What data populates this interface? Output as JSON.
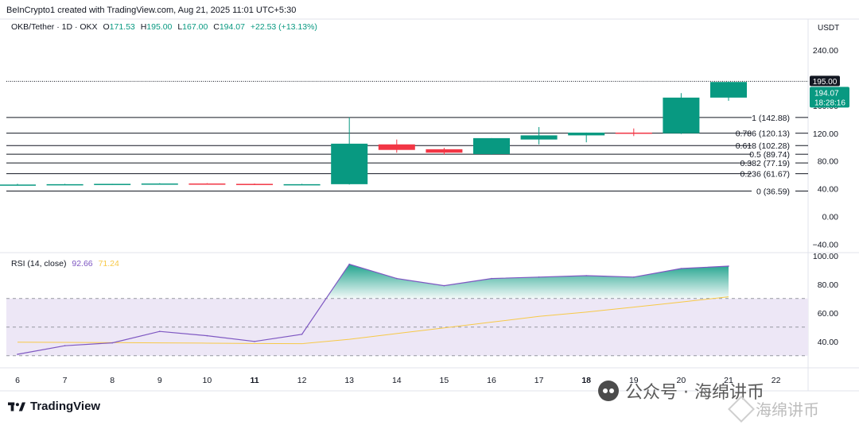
{
  "header": {
    "text": "BeInCrypto1 created with TradingView.com, Aug 21, 2025 11:01 UTC+5:30"
  },
  "legend": {
    "symbol": "OKB/Tether · 1D · OKX",
    "o_label": "O",
    "o_value": "171.53",
    "h_label": "H",
    "h_value": "195.00",
    "l_label": "L",
    "l_value": "167.00",
    "c_label": "C",
    "c_value": "194.07",
    "change": "+22.53 (+13.13%)"
  },
  "rsi_legend": {
    "label": "RSI (14, close)",
    "rsi_value": "92.66",
    "ma_value": "71.24"
  },
  "currency": "USDT",
  "price_badges": {
    "high": "195.00",
    "last": "194.07",
    "countdown": "18:28:16"
  },
  "branding": {
    "logo": "TradingView"
  },
  "watermark": {
    "text1": "公众号 · 海绵讲币",
    "text2": "海绵讲币"
  },
  "colors": {
    "up": "#089981",
    "down": "#f23645",
    "rsi_line": "#7e57c2",
    "rsi_ma": "#f7c948",
    "fib": "#131722",
    "rsi_band": "#ede7f6"
  },
  "chart_data": [
    {
      "type": "candlestick",
      "title": "OKB/Tether · 1D · OKX",
      "x": [
        "6",
        "7",
        "8",
        "9",
        "10",
        "11",
        "12",
        "13",
        "14",
        "15",
        "16",
        "17",
        "18",
        "19",
        "20",
        "21",
        "22"
      ],
      "bold_ticks": [
        "11",
        "18"
      ],
      "candles": [
        {
          "x": "6",
          "o": 46,
          "h": 47,
          "l": 45,
          "c": 46
        },
        {
          "x": "7",
          "o": 46,
          "h": 47,
          "l": 45.5,
          "c": 46.5
        },
        {
          "x": "8",
          "o": 46.5,
          "h": 47,
          "l": 46,
          "c": 47
        },
        {
          "x": "9",
          "o": 47,
          "h": 48,
          "l": 46.5,
          "c": 47.5
        },
        {
          "x": "10",
          "o": 47.5,
          "h": 48,
          "l": 46.5,
          "c": 47
        },
        {
          "x": "11",
          "o": 47,
          "h": 47.5,
          "l": 46,
          "c": 46.5
        },
        {
          "x": "12",
          "o": 46.5,
          "h": 47,
          "l": 46,
          "c": 46.5
        },
        {
          "x": "13",
          "o": 46.5,
          "h": 143,
          "l": 46,
          "c": 105
        },
        {
          "x": "14",
          "o": 104,
          "h": 111,
          "l": 92,
          "c": 96
        },
        {
          "x": "15",
          "o": 97,
          "h": 99,
          "l": 89,
          "c": 92
        },
        {
          "x": "16",
          "o": 90,
          "h": 113,
          "l": 89,
          "c": 113
        },
        {
          "x": "17",
          "o": 111,
          "h": 129,
          "l": 104,
          "c": 117
        },
        {
          "x": "18",
          "o": 117,
          "h": 121,
          "l": 107,
          "c": 121
        },
        {
          "x": "19",
          "o": 121,
          "h": 127,
          "l": 116,
          "c": 120
        },
        {
          "x": "20",
          "o": 120,
          "h": 178,
          "l": 119,
          "c": 171.53
        },
        {
          "x": "21",
          "o": 171.53,
          "h": 195,
          "l": 167,
          "c": 194.07
        }
      ],
      "ylim": [
        -50,
        262
      ],
      "y_ticks": [
        240,
        160,
        120,
        80,
        40,
        0,
        -40
      ],
      "y_tick_labels": [
        "240.00",
        "160.00",
        "120.00",
        "80.00",
        "40.00",
        "0.00",
        "−40.00"
      ],
      "horizontal_lines": [
        195
      ],
      "fib_levels": [
        {
          "value": 142.88,
          "label": "1 (142.88)"
        },
        {
          "value": 120.13,
          "label": "0.786 (120.13)"
        },
        {
          "value": 102.28,
          "label": "0.618 (102.28)"
        },
        {
          "value": 89.74,
          "label": "0.5 (89.74)"
        },
        {
          "value": 77.19,
          "label": "0.382 (77.19)"
        },
        {
          "value": 61.67,
          "label": "0.236 (61.67)"
        },
        {
          "value": 36.59,
          "label": "0 (36.59)"
        }
      ]
    },
    {
      "type": "line",
      "title": "RSI (14, close)",
      "x": [
        "6",
        "7",
        "8",
        "9",
        "10",
        "11",
        "12",
        "13",
        "14",
        "15",
        "16",
        "17",
        "18",
        "19",
        "20",
        "21"
      ],
      "series": [
        {
          "name": "RSI",
          "values": [
            31,
            37,
            39,
            47,
            44,
            40,
            45,
            94,
            84,
            79,
            84,
            85,
            86,
            85,
            91,
            92.66
          ]
        },
        {
          "name": "RSI-based MA",
          "values": [
            39.5,
            39.3,
            39.2,
            39.0,
            38.8,
            38.6,
            38.4,
            41.5,
            45.5,
            49.5,
            53.5,
            57.5,
            60.5,
            64.0,
            67.5,
            71.24
          ]
        }
      ],
      "overbought": 70,
      "middle": 50,
      "oversold": 30,
      "ylim": [
        26,
        101
      ],
      "y_ticks": [
        100,
        80,
        60,
        40
      ],
      "y_tick_labels": [
        "100.00",
        "80.00",
        "60.00",
        "40.00"
      ]
    }
  ]
}
